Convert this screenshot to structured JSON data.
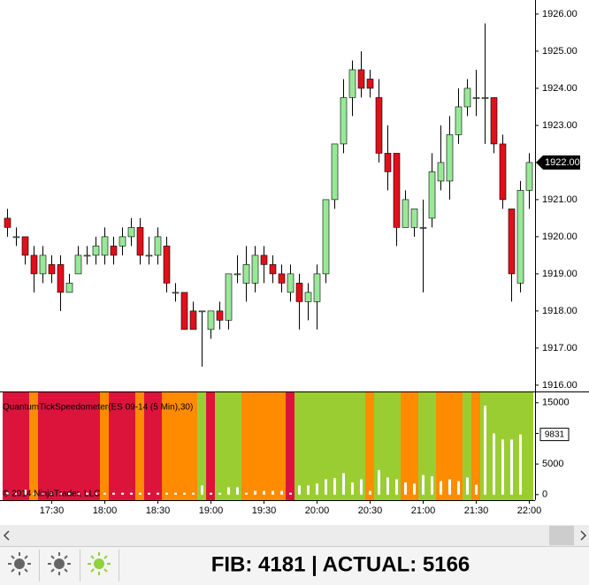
{
  "chart_data": [
    {
      "type": "candlestick",
      "open": [
        1920.5,
        1920.0,
        1920.0,
        1919.5,
        1919.0,
        1919.25,
        1919.25,
        1918.5,
        1919.0,
        1919.5,
        1919.5,
        1919.5,
        1919.75,
        1919.75,
        1920.0,
        1920.25,
        1919.5,
        1919.5,
        1919.75,
        1918.5,
        1918.5,
        1918.0,
        1918.0,
        1917.5,
        1918.0,
        1917.75,
        1919.0,
        1918.75,
        1918.75,
        1919.5,
        1919.25,
        1919.0,
        1918.5,
        1918.75,
        1918.25,
        1918.25,
        1919.0,
        1921.0,
        1922.5,
        1923.75,
        1924.5,
        1924.25,
        1923.75,
        1922.25,
        1922.25,
        1920.25,
        1920.25,
        1920.25,
        1920.5,
        1921.5,
        1921.5,
        1922.75,
        1923.5,
        1923.75,
        1923.75,
        1923.75,
        1922.5,
        1920.75,
        1918.75,
        1921.25
      ],
      "high": [
        1920.75,
        1920.25,
        1920.0,
        1919.75,
        1919.75,
        1919.5,
        1919.5,
        1919.0,
        1919.75,
        1919.75,
        1920.0,
        1920.25,
        1920.0,
        1920.25,
        1920.5,
        1920.5,
        1920.0,
        1920.25,
        1920.0,
        1918.75,
        1918.5,
        1918.25,
        1918.0,
        1918.0,
        1918.25,
        1919.0,
        1919.5,
        1919.75,
        1919.75,
        1919.75,
        1919.5,
        1919.25,
        1919.25,
        1919.0,
        1918.75,
        1919.25,
        1921.0,
        1922.5,
        1924.25,
        1924.75,
        1925.0,
        1924.5,
        1924.25,
        1923.0,
        1922.25,
        1921.25,
        1920.75,
        1921.0,
        1922.25,
        1923.0,
        1923.25,
        1924.0,
        1924.25,
        1924.5,
        1925.75,
        1923.75,
        1922.75,
        1920.75,
        1921.5,
        1922.25
      ],
      "low": [
        1920.0,
        1919.75,
        1919.25,
        1918.5,
        1918.75,
        1918.75,
        1918.0,
        1918.5,
        1919.0,
        1919.25,
        1919.25,
        1919.25,
        1919.25,
        1919.5,
        1919.75,
        1919.25,
        1919.25,
        1919.25,
        1918.5,
        1918.25,
        1917.5,
        1917.5,
        1916.5,
        1917.25,
        1917.5,
        1917.5,
        1918.75,
        1918.25,
        1918.5,
        1918.75,
        1918.75,
        1918.5,
        1918.25,
        1917.5,
        1917.75,
        1917.5,
        1918.75,
        1920.75,
        1922.25,
        1923.25,
        1923.75,
        1923.75,
        1922.0,
        1921.25,
        1919.75,
        1920.25,
        1920.0,
        1918.5,
        1920.25,
        1921.25,
        1921.0,
        1922.5,
        1923.25,
        1923.25,
        1922.5,
        1922.25,
        1920.75,
        1918.25,
        1918.5,
        1920.75
      ],
      "close": [
        1920.25,
        1920.0,
        1919.5,
        1919.0,
        1919.5,
        1919.0,
        1918.5,
        1918.75,
        1919.5,
        1919.5,
        1919.75,
        1920.0,
        1919.5,
        1920.0,
        1920.25,
        1919.5,
        1919.5,
        1920.0,
        1918.75,
        1918.5,
        1917.5,
        1917.5,
        1918.0,
        1918.0,
        1917.75,
        1919.0,
        1919.0,
        1919.25,
        1919.5,
        1919.25,
        1919.0,
        1918.75,
        1919.0,
        1918.25,
        1918.5,
        1919.0,
        1921.0,
        1922.5,
        1923.75,
        1924.5,
        1924.0,
        1924.0,
        1922.25,
        1921.75,
        1920.25,
        1921.0,
        1920.75,
        1920.25,
        1921.75,
        1922.0,
        1922.75,
        1923.5,
        1924.0,
        1923.75,
        1923.75,
        1922.5,
        1921.0,
        1919.0,
        1921.25,
        1922.0
      ],
      "up_color": "#98e898",
      "down_color": "#e0101a",
      "ylim": [
        1915.83,
        1926.38
      ],
      "yticks": [
        {
          "value": 1916,
          "label": "1916.00"
        },
        {
          "value": 1917,
          "label": "1917.00"
        },
        {
          "value": 1918,
          "label": "1918.00"
        },
        {
          "value": 1919,
          "label": "1919.00"
        },
        {
          "value": 1920,
          "label": "1920.00"
        },
        {
          "value": 1921,
          "label": "1921.00"
        },
        {
          "value": 1922,
          "label": "1922.00"
        },
        {
          "value": 1923,
          "label": "1923.00"
        },
        {
          "value": 1924,
          "label": "1924.00"
        },
        {
          "value": 1925,
          "label": "1925.00"
        },
        {
          "value": 1926,
          "label": "1926.00"
        }
      ],
      "last_price": {
        "value": 1922,
        "label": "1922.00"
      }
    },
    {
      "type": "bar",
      "title": "QuantumTickSpeedometer(ES 09-14 (5 Min),30)",
      "credit": "© 2014 NinjaTrader, LLC",
      "values": [
        400,
        300,
        800,
        300,
        300,
        300,
        300,
        300,
        300,
        300,
        300,
        300,
        300,
        300,
        300,
        300,
        300,
        300,
        300,
        300,
        300,
        300,
        1500,
        300,
        300,
        1200,
        1200,
        300,
        600,
        600,
        600,
        600,
        300,
        1500,
        1500,
        1800,
        2500,
        2700,
        3500,
        2000,
        2500,
        600,
        4000,
        2800,
        2500,
        2000,
        1800,
        3200,
        3000,
        2200,
        2500,
        2200,
        2800,
        1600,
        14500,
        10000,
        9000,
        9000,
        9831,
        null
      ],
      "color": "#ffffff",
      "backgrounds": [
        "#dc143c",
        "#dc143c",
        "#dc143c",
        "#ff8c00",
        "#dc143c",
        "#dc143c",
        "#dc143c",
        "#dc143c",
        "#dc143c",
        "#dc143c",
        "#dc143c",
        "#ff8c00",
        "#dc143c",
        "#dc143c",
        "#dc143c",
        "#ff8c00",
        "#dc143c",
        "#dc143c",
        "#ff8c00",
        "#ff8c00",
        "#ff8c00",
        "#ff8c00",
        "#9acd32",
        "#dc143c",
        "#9acd32",
        "#9acd32",
        "#9acd32",
        "#ff8c00",
        "#ff8c00",
        "#ff8c00",
        "#ff8c00",
        "#ff8c00",
        "#dc143c",
        "#9acd32",
        "#9acd32",
        "#9acd32",
        "#9acd32",
        "#9acd32",
        "#9acd32",
        "#9acd32",
        "#9acd32",
        "#ff8c00",
        "#9acd32",
        "#9acd32",
        "#9acd32",
        "#ff8c00",
        "#ff8c00",
        "#9acd32",
        "#9acd32",
        "#ff8c00",
        "#ff8c00",
        "#ff8c00",
        "#9acd32",
        "#ff8c00",
        "#9acd32",
        "#9acd32",
        "#9acd32",
        "#9acd32",
        "#9acd32",
        "#9acd32"
      ],
      "ylim": [
        -900,
        16700
      ],
      "yticks": [
        0,
        5000,
        10000,
        15000
      ],
      "last_value": 9831,
      "xticks": [
        {
          "value": 5,
          "label": "17:30"
        },
        {
          "value": 11,
          "label": "18:00"
        },
        {
          "value": 17,
          "label": "18:30"
        },
        {
          "value": 23,
          "label": "19:00"
        },
        {
          "value": 29,
          "label": "19:30"
        },
        {
          "value": 35,
          "label": "20:00"
        },
        {
          "value": 41,
          "label": "20:30"
        },
        {
          "value": 47,
          "label": "21:00"
        },
        {
          "value": 53,
          "label": "21:30"
        },
        {
          "value": 59,
          "label": "22:00"
        }
      ]
    }
  ],
  "toolbar": {
    "text": "FIB: 4181 | ACTUAL: 5166"
  }
}
